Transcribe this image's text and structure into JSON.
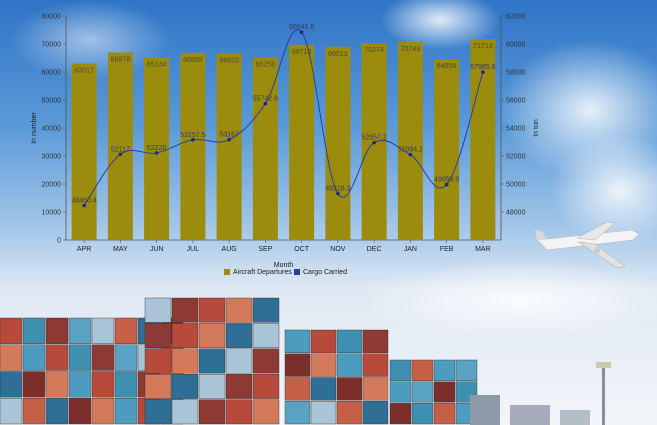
{
  "chart_data": {
    "type": "bar",
    "categories": [
      "APR",
      "MAY",
      "JUN",
      "JUL",
      "AUG",
      "SEP",
      "OCT",
      "NOV",
      "DEC",
      "JAN",
      "FEB",
      "MAR"
    ],
    "series": [
      {
        "name": "Aircraft Departures",
        "kind": "bar",
        "axis": "left",
        "values": [
          63017,
          66978,
          65144,
          66859,
          66620,
          65258,
          69713,
          69013,
          70274,
          70743,
          64556,
          71713
        ],
        "labels": [
          "63017",
          "66978",
          "65144",
          "66859",
          "66620",
          "65258",
          "69713",
          "69013",
          "70274",
          "70743",
          "64556",
          "71713"
        ]
      },
      {
        "name": "Cargo Carried",
        "kind": "line",
        "axis": "right",
        "values": [
          48460.4,
          52117,
          52220,
          53157.5,
          53167,
          55742.8,
          60845.6,
          49318.3,
          52957.2,
          52094.2,
          49958.9,
          57985.9
        ],
        "labels": [
          "48460.4",
          "52117",
          "52220",
          "53157.5",
          "53167",
          "55742.8",
          "60845.6",
          "49318.3",
          "52957.2",
          "52094.2",
          "49958.9",
          "57985.9"
        ]
      }
    ],
    "xlabel": "Month",
    "ylabel_left": "In number",
    "ylabel_right": "In ton",
    "ylim_left": [
      0,
      80000
    ],
    "ylim_right": [
      46000,
      62000
    ],
    "yticks_left": [
      0,
      10000,
      20000,
      30000,
      40000,
      50000,
      60000,
      70000,
      80000
    ],
    "yticks_right": [
      48000,
      50000,
      52000,
      54000,
      56000,
      58000,
      60000,
      62000
    ],
    "legend_position": "bottom",
    "grid": false,
    "colors": {
      "bar": "#9b8c0d",
      "line": "#2b3f9e",
      "line_marker": "#1a2a86",
      "axis": "#555555"
    }
  }
}
